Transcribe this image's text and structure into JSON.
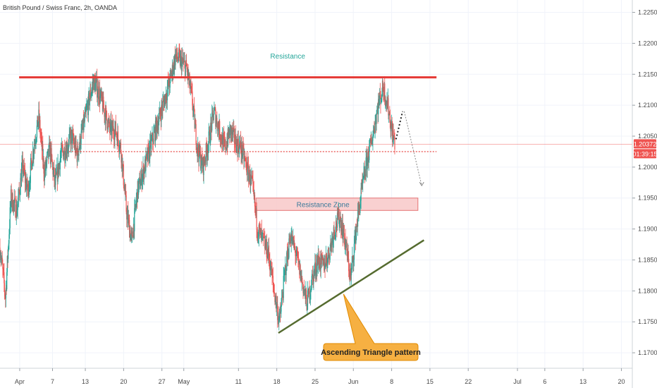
{
  "chart_data": {
    "type": "candlestick",
    "title": "British Pound / Swiss Franc, 2h, OANDA",
    "x_axis": {
      "ticks": [
        {
          "label": "Apr",
          "day": 1
        },
        {
          "label": "7",
          "day": 7
        },
        {
          "label": "13",
          "day": 13
        },
        {
          "label": "20",
          "day": 20
        },
        {
          "label": "27",
          "day": 27
        },
        {
          "label": "May",
          "day": 31
        },
        {
          "label": "11",
          "day": 41
        },
        {
          "label": "18",
          "day": 48
        },
        {
          "label": "25",
          "day": 55
        },
        {
          "label": "Jun",
          "day": 62
        },
        {
          "label": "8",
          "day": 69
        },
        {
          "label": "15",
          "day": 76
        },
        {
          "label": "22",
          "day": 83
        },
        {
          "label": "Jul",
          "day": 92
        },
        {
          "label": "6",
          "day": 97
        },
        {
          "label": "13",
          "day": 104
        },
        {
          "label": "20",
          "day": 111
        }
      ],
      "range_days": [
        -2.6,
        113
      ]
    },
    "y_axis": {
      "range": [
        1.1675,
        1.227
      ],
      "ticks": [
        "1.22500",
        "1.22000",
        "1.21500",
        "1.21000",
        "1.20500",
        "1.20000",
        "1.19500",
        "1.19000",
        "1.18500",
        "1.18000",
        "1.17500",
        "1.17000"
      ],
      "tick_values": [
        1.225,
        1.22,
        1.215,
        1.21,
        1.205,
        1.2,
        1.195,
        1.19,
        1.185,
        1.18,
        1.175,
        1.17
      ]
    },
    "price_path": [
      [
        -2.6,
        1.187
      ],
      [
        -1.6,
        1.179
      ],
      [
        -0.6,
        1.195
      ],
      [
        0.5,
        1.193
      ],
      [
        1.5,
        1.2
      ],
      [
        2.5,
        1.196
      ],
      [
        3.5,
        1.203
      ],
      [
        4.5,
        1.208
      ],
      [
        5.5,
        1.199
      ],
      [
        6.5,
        1.203
      ],
      [
        7.5,
        1.197
      ],
      [
        8.5,
        1.202
      ],
      [
        9.5,
        1.203
      ],
      [
        10.5,
        1.205
      ],
      [
        11.5,
        1.202
      ],
      [
        12.5,
        1.206
      ],
      [
        13.5,
        1.21
      ],
      [
        14.5,
        1.214
      ],
      [
        15.5,
        1.212
      ],
      [
        16.5,
        1.209
      ],
      [
        17.5,
        1.206
      ],
      [
        18.5,
        1.206
      ],
      [
        19.5,
        1.203
      ],
      [
        20.5,
        1.193
      ],
      [
        21.5,
        1.188
      ],
      [
        22.5,
        1.196
      ],
      [
        23.5,
        1.199
      ],
      [
        24.5,
        1.202
      ],
      [
        25.5,
        1.205
      ],
      [
        26.5,
        1.208
      ],
      [
        27.5,
        1.211
      ],
      [
        28.5,
        1.214
      ],
      [
        29.5,
        1.218
      ],
      [
        30.5,
        1.217
      ],
      [
        31.5,
        1.216
      ],
      [
        32.5,
        1.211
      ],
      [
        33.5,
        1.203
      ],
      [
        34.5,
        1.2
      ],
      [
        35.5,
        1.204
      ],
      [
        36.5,
        1.209
      ],
      [
        37.5,
        1.206
      ],
      [
        38.5,
        1.203
      ],
      [
        39.5,
        1.206
      ],
      [
        40.5,
        1.204
      ],
      [
        41.5,
        1.203
      ],
      [
        42.5,
        1.2
      ],
      [
        43.5,
        1.197
      ],
      [
        44.5,
        1.19
      ],
      [
        45.5,
        1.188
      ],
      [
        46.5,
        1.186
      ],
      [
        47.5,
        1.18
      ],
      [
        48.5,
        1.175
      ],
      [
        49.5,
        1.183
      ],
      [
        50.5,
        1.189
      ],
      [
        51.5,
        1.186
      ],
      [
        52.5,
        1.182
      ],
      [
        53.5,
        1.178
      ],
      [
        54.5,
        1.182
      ],
      [
        55.5,
        1.185
      ],
      [
        56.5,
        1.184
      ],
      [
        57.5,
        1.186
      ],
      [
        58.5,
        1.19
      ],
      [
        59.5,
        1.192
      ],
      [
        60.5,
        1.188
      ],
      [
        61.5,
        1.182
      ],
      [
        62.5,
        1.19
      ],
      [
        63.5,
        1.196
      ],
      [
        64.5,
        1.201
      ],
      [
        65.5,
        1.205
      ],
      [
        66.5,
        1.21
      ],
      [
        67.5,
        1.213
      ],
      [
        68.5,
        1.209
      ],
      [
        69.0,
        1.206
      ],
      [
        69.6,
        1.2037
      ]
    ],
    "current_price": {
      "value": "1.20372",
      "countdown": "01:39:15",
      "y": 1.2037
    },
    "levels": {
      "resistance": {
        "y": 1.2145,
        "x": [
          0.9,
          77.2
        ]
      },
      "dotted_support": {
        "y": 1.2025,
        "x": [
          10.0,
          77.2
        ]
      }
    },
    "resistance_zone": {
      "label": "Resistance Zone",
      "y": [
        1.193,
        1.195
      ],
      "x": [
        44.2,
        73.8
      ]
    },
    "triangle_line": {
      "x": [
        48.3,
        74.9
      ],
      "y": [
        1.1732,
        1.1882
      ]
    },
    "projection": {
      "x": [
        71.3,
        74.5
      ],
      "y": [
        1.209,
        1.197
      ]
    },
    "dotted_up": {
      "x": [
        69.8,
        71.0
      ],
      "y": [
        1.2045,
        1.209
      ]
    }
  },
  "annotations": {
    "resistance": "Resistance",
    "triangle_callout": "Ascending Triangle pattern"
  },
  "colors": {
    "up": "#26a69a",
    "down": "#ef5350",
    "resistance_line": "#e53935",
    "triangle_line": "#556b2f",
    "zone_fill": "#f8c8c8",
    "zone_border": "#e57373",
    "callout_fill": "#f6b042",
    "callout_border": "#e08a00",
    "price_badge": "#ef5350",
    "annotation_text": "#26a69a"
  }
}
